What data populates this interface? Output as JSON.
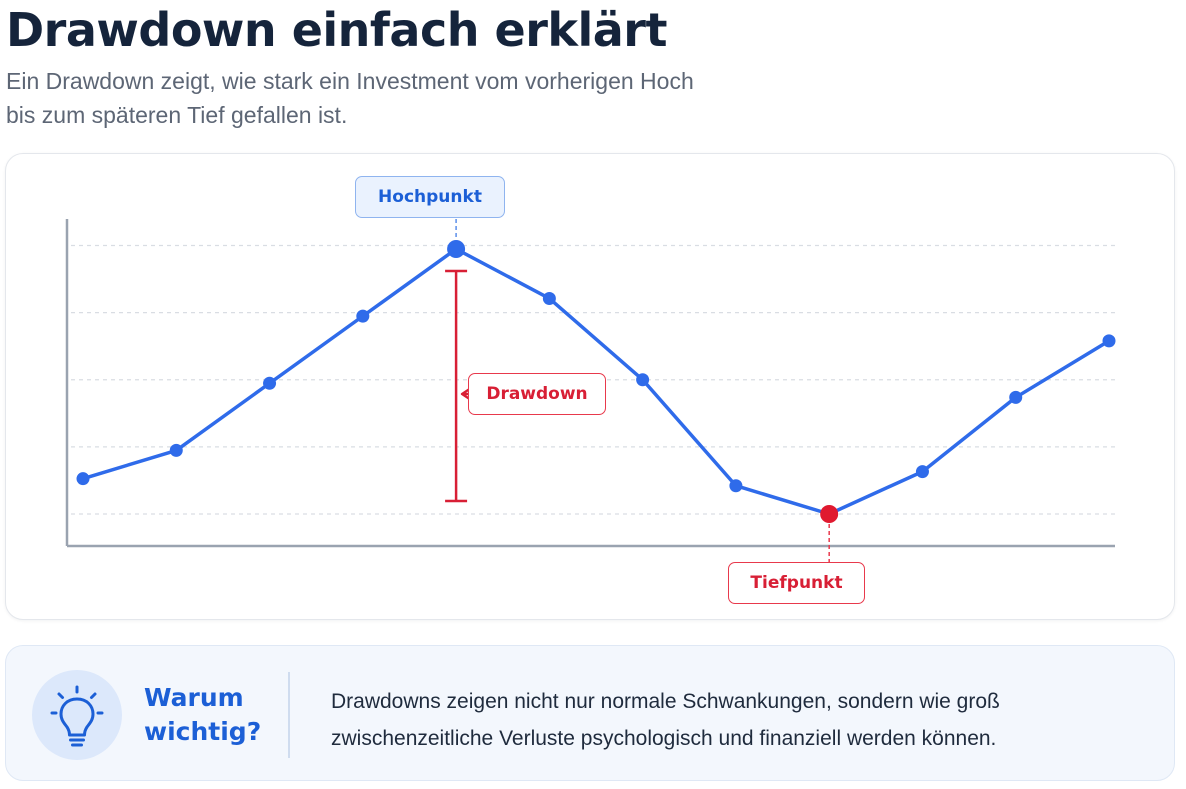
{
  "header": {
    "title": "Drawdown einfach erklärt",
    "subtitle_line1": "Ein Drawdown zeigt, wie stark ein Investment vom vorherigen Hoch",
    "subtitle_line2": "bis zum späteren Tief gefallen ist."
  },
  "diagram": {
    "labels": {
      "high": "Hochpunkt",
      "drawdown": "Drawdown",
      "low": "Tiefpunkt"
    },
    "series_values": [
      25,
      33,
      52,
      71,
      90,
      76,
      53,
      23,
      15,
      27,
      48,
      64
    ],
    "high_index": 4,
    "low_index": 8,
    "y_range": [
      0,
      100
    ],
    "gridlines": [
      15,
      34,
      53,
      72,
      91
    ],
    "colors": {
      "line": "#2f6bea",
      "high": "#2f6bea",
      "low": "#e0192f",
      "drawdown": "#d81f35",
      "grid": "#d9dde3",
      "axis": "#9aa3b0"
    }
  },
  "info": {
    "icon": "lightbulb-icon",
    "heading_line1": "Warum",
    "heading_line2": "wichtig?",
    "text_line1": "Drawdowns zeigen nicht nur normale Schwankungen, sondern wie groß",
    "text_line2": "zwischenzeitliche Verluste psychologisch und finanziell werden können."
  }
}
